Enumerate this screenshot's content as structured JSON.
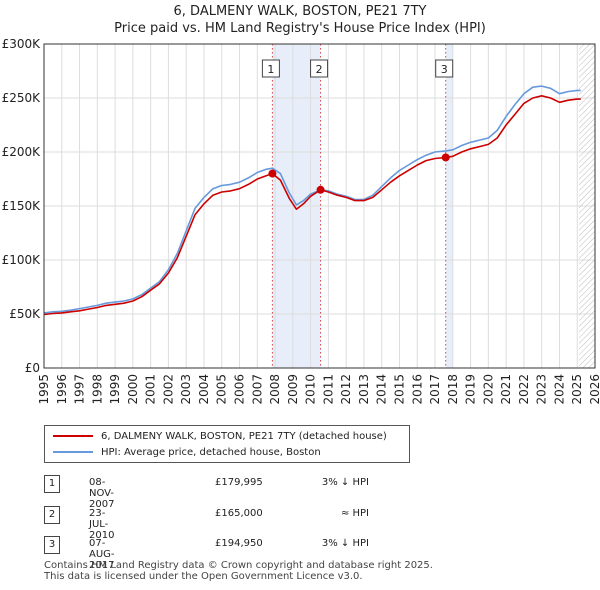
{
  "title_line1": "6, DALMENY WALK, BOSTON, PE21 7TY",
  "title_line2": "Price paid vs. HM Land Registry's House Price Index (HPI)",
  "chart_data": {
    "type": "line",
    "xlim": [
      1995,
      2026
    ],
    "ylim": [
      0,
      300000
    ],
    "x_ticks": [
      1995,
      1996,
      1997,
      1998,
      1999,
      2000,
      2001,
      2002,
      2003,
      2004,
      2005,
      2006,
      2007,
      2008,
      2009,
      2010,
      2011,
      2012,
      2013,
      2014,
      2015,
      2016,
      2017,
      2018,
      2019,
      2020,
      2021,
      2022,
      2023,
      2024,
      2025,
      2026
    ],
    "y_ticks": [
      {
        "value": 0,
        "label": "£0"
      },
      {
        "value": 50000,
        "label": "£50K"
      },
      {
        "value": 100000,
        "label": "£100K"
      },
      {
        "value": 150000,
        "label": "£150K"
      },
      {
        "value": 200000,
        "label": "£200K"
      },
      {
        "value": 250000,
        "label": "£250K"
      },
      {
        "value": 300000,
        "label": "£300K"
      }
    ],
    "grid": true,
    "hatch_from": 2025.1,
    "shaded_spans": [
      [
        2007.85,
        2010.56
      ],
      [
        2017.6,
        2018.0
      ]
    ],
    "series": [
      {
        "name": "6, DALMENY WALK, BOSTON, PE21 7TY (detached house)",
        "color": "#cc0000",
        "points": [
          [
            1995.0,
            49500
          ],
          [
            1995.5,
            50500
          ],
          [
            1996.0,
            51000
          ],
          [
            1996.5,
            52000
          ],
          [
            1997.0,
            53000
          ],
          [
            1997.5,
            54500
          ],
          [
            1998.0,
            56000
          ],
          [
            1998.5,
            58000
          ],
          [
            1999.0,
            59000
          ],
          [
            1999.5,
            60000
          ],
          [
            2000.0,
            62000
          ],
          [
            2000.5,
            66000
          ],
          [
            2001.0,
            72000
          ],
          [
            2001.5,
            78000
          ],
          [
            2002.0,
            88000
          ],
          [
            2002.5,
            102000
          ],
          [
            2003.0,
            122000
          ],
          [
            2003.5,
            142000
          ],
          [
            2004.0,
            152000
          ],
          [
            2004.5,
            160000
          ],
          [
            2005.0,
            163000
          ],
          [
            2005.5,
            164000
          ],
          [
            2006.0,
            166000
          ],
          [
            2006.5,
            170000
          ],
          [
            2007.0,
            175000
          ],
          [
            2007.5,
            178000
          ],
          [
            2007.85,
            179995
          ],
          [
            2008.3,
            174000
          ],
          [
            2008.8,
            157000
          ],
          [
            2009.2,
            147000
          ],
          [
            2009.6,
            152000
          ],
          [
            2010.0,
            159000
          ],
          [
            2010.56,
            165000
          ],
          [
            2011.0,
            163000
          ],
          [
            2011.5,
            160000
          ],
          [
            2012.0,
            158000
          ],
          [
            2012.5,
            155000
          ],
          [
            2013.0,
            155000
          ],
          [
            2013.5,
            158000
          ],
          [
            2014.0,
            165000
          ],
          [
            2014.5,
            172000
          ],
          [
            2015.0,
            178000
          ],
          [
            2015.5,
            183000
          ],
          [
            2016.0,
            188000
          ],
          [
            2016.5,
            192000
          ],
          [
            2017.0,
            194000
          ],
          [
            2017.6,
            194950
          ],
          [
            2018.0,
            196000
          ],
          [
            2018.5,
            200000
          ],
          [
            2019.0,
            203000
          ],
          [
            2019.5,
            205000
          ],
          [
            2020.0,
            207000
          ],
          [
            2020.5,
            213000
          ],
          [
            2021.0,
            225000
          ],
          [
            2021.5,
            235000
          ],
          [
            2022.0,
            245000
          ],
          [
            2022.5,
            250000
          ],
          [
            2023.0,
            252000
          ],
          [
            2023.5,
            250000
          ],
          [
            2024.0,
            246000
          ],
          [
            2024.5,
            248000
          ],
          [
            2025.0,
            249000
          ],
          [
            2025.2,
            249000
          ]
        ]
      },
      {
        "name": "HPI: Average price, detached house, Boston",
        "color": "#6699dd",
        "points": [
          [
            1995.0,
            51000
          ],
          [
            1995.5,
            52000
          ],
          [
            1996.0,
            52500
          ],
          [
            1996.5,
            53500
          ],
          [
            1997.0,
            55000
          ],
          [
            1997.5,
            56500
          ],
          [
            1998.0,
            58000
          ],
          [
            1998.5,
            60000
          ],
          [
            1999.0,
            61000
          ],
          [
            1999.5,
            62000
          ],
          [
            2000.0,
            64000
          ],
          [
            2000.5,
            68000
          ],
          [
            2001.0,
            74000
          ],
          [
            2001.5,
            80000
          ],
          [
            2002.0,
            91000
          ],
          [
            2002.5,
            106000
          ],
          [
            2003.0,
            127000
          ],
          [
            2003.5,
            148000
          ],
          [
            2004.0,
            158000
          ],
          [
            2004.5,
            166000
          ],
          [
            2005.0,
            169000
          ],
          [
            2005.5,
            170000
          ],
          [
            2006.0,
            172000
          ],
          [
            2006.5,
            176000
          ],
          [
            2007.0,
            181000
          ],
          [
            2007.5,
            184000
          ],
          [
            2007.85,
            185000
          ],
          [
            2008.3,
            180000
          ],
          [
            2008.8,
            162000
          ],
          [
            2009.2,
            151000
          ],
          [
            2009.6,
            155000
          ],
          [
            2010.0,
            161000
          ],
          [
            2010.56,
            165000
          ],
          [
            2011.0,
            164000
          ],
          [
            2011.5,
            161000
          ],
          [
            2012.0,
            159000
          ],
          [
            2012.5,
            156000
          ],
          [
            2013.0,
            156000
          ],
          [
            2013.5,
            160000
          ],
          [
            2014.0,
            168000
          ],
          [
            2014.5,
            176000
          ],
          [
            2015.0,
            183000
          ],
          [
            2015.5,
            188000
          ],
          [
            2016.0,
            193000
          ],
          [
            2016.5,
            197000
          ],
          [
            2017.0,
            200000
          ],
          [
            2017.6,
            201000
          ],
          [
            2018.0,
            202000
          ],
          [
            2018.5,
            206000
          ],
          [
            2019.0,
            209000
          ],
          [
            2019.5,
            211000
          ],
          [
            2020.0,
            213000
          ],
          [
            2020.5,
            220000
          ],
          [
            2021.0,
            233000
          ],
          [
            2021.5,
            244000
          ],
          [
            2022.0,
            254000
          ],
          [
            2022.5,
            260000
          ],
          [
            2023.0,
            261000
          ],
          [
            2023.5,
            259000
          ],
          [
            2024.0,
            254000
          ],
          [
            2024.5,
            256000
          ],
          [
            2025.0,
            257000
          ],
          [
            2025.2,
            257000
          ]
        ]
      }
    ],
    "transactions": [
      {
        "label": "1",
        "x": 2007.85,
        "y": 179995
      },
      {
        "label": "2",
        "x": 2010.56,
        "y": 165000
      },
      {
        "label": "3",
        "x": 2017.6,
        "y": 194950
      }
    ]
  },
  "legend": {
    "red_label": "6, DALMENY WALK, BOSTON, PE21 7TY (detached house)",
    "blue_label": "HPI: Average price, detached house, Boston",
    "red_color": "#cc0000",
    "blue_color": "#6699dd"
  },
  "transactions_table": [
    {
      "num": "1",
      "date": "08-NOV-2007",
      "price": "£179,995",
      "hpi": "3% ↓ HPI"
    },
    {
      "num": "2",
      "date": "23-JUL-2010",
      "price": "£165,000",
      "hpi": "≈ HPI"
    },
    {
      "num": "3",
      "date": "07-AUG-2017",
      "price": "£194,950",
      "hpi": "3% ↓ HPI"
    }
  ],
  "footer_line1": "Contains HM Land Registry data © Crown copyright and database right 2025.",
  "footer_line2": "This data is licensed under the Open Government Licence v3.0."
}
